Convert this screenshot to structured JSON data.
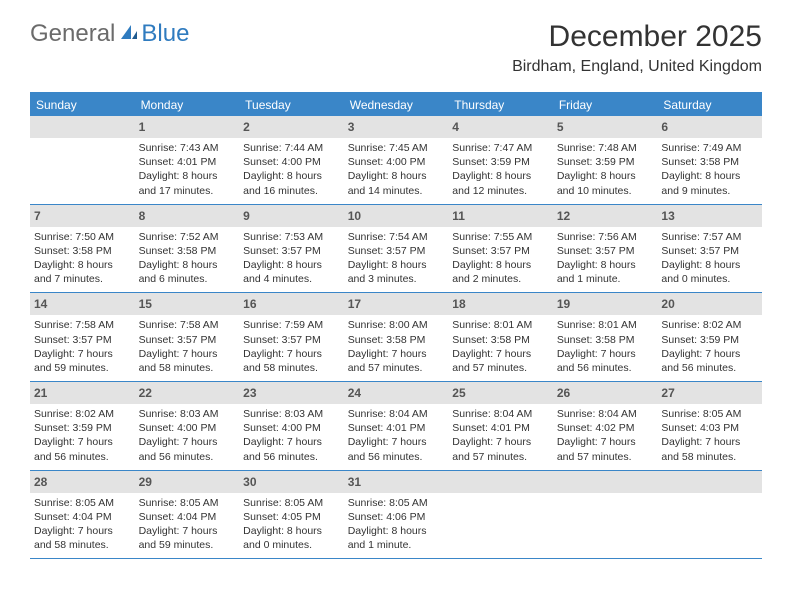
{
  "logo": {
    "general": "General",
    "blue": "Blue"
  },
  "title": "December 2025",
  "location": "Birdham, England, United Kingdom",
  "colors": {
    "header_bg": "#3a86c8",
    "header_text": "#ffffff",
    "daynum_bg": "#e3e3e3",
    "daynum_text": "#555555",
    "border": "#3a86c8",
    "body_text": "#333333",
    "logo_gray": "#6b6b6b",
    "logo_blue": "#2f7bbf"
  },
  "day_headers": [
    "Sunday",
    "Monday",
    "Tuesday",
    "Wednesday",
    "Thursday",
    "Friday",
    "Saturday"
  ],
  "weeks": [
    [
      {
        "n": "",
        "sunrise": "",
        "sunset": "",
        "daylight": ""
      },
      {
        "n": "1",
        "sunrise": "Sunrise: 7:43 AM",
        "sunset": "Sunset: 4:01 PM",
        "daylight": "Daylight: 8 hours and 17 minutes."
      },
      {
        "n": "2",
        "sunrise": "Sunrise: 7:44 AM",
        "sunset": "Sunset: 4:00 PM",
        "daylight": "Daylight: 8 hours and 16 minutes."
      },
      {
        "n": "3",
        "sunrise": "Sunrise: 7:45 AM",
        "sunset": "Sunset: 4:00 PM",
        "daylight": "Daylight: 8 hours and 14 minutes."
      },
      {
        "n": "4",
        "sunrise": "Sunrise: 7:47 AM",
        "sunset": "Sunset: 3:59 PM",
        "daylight": "Daylight: 8 hours and 12 minutes."
      },
      {
        "n": "5",
        "sunrise": "Sunrise: 7:48 AM",
        "sunset": "Sunset: 3:59 PM",
        "daylight": "Daylight: 8 hours and 10 minutes."
      },
      {
        "n": "6",
        "sunrise": "Sunrise: 7:49 AM",
        "sunset": "Sunset: 3:58 PM",
        "daylight": "Daylight: 8 hours and 9 minutes."
      }
    ],
    [
      {
        "n": "7",
        "sunrise": "Sunrise: 7:50 AM",
        "sunset": "Sunset: 3:58 PM",
        "daylight": "Daylight: 8 hours and 7 minutes."
      },
      {
        "n": "8",
        "sunrise": "Sunrise: 7:52 AM",
        "sunset": "Sunset: 3:58 PM",
        "daylight": "Daylight: 8 hours and 6 minutes."
      },
      {
        "n": "9",
        "sunrise": "Sunrise: 7:53 AM",
        "sunset": "Sunset: 3:57 PM",
        "daylight": "Daylight: 8 hours and 4 minutes."
      },
      {
        "n": "10",
        "sunrise": "Sunrise: 7:54 AM",
        "sunset": "Sunset: 3:57 PM",
        "daylight": "Daylight: 8 hours and 3 minutes."
      },
      {
        "n": "11",
        "sunrise": "Sunrise: 7:55 AM",
        "sunset": "Sunset: 3:57 PM",
        "daylight": "Daylight: 8 hours and 2 minutes."
      },
      {
        "n": "12",
        "sunrise": "Sunrise: 7:56 AM",
        "sunset": "Sunset: 3:57 PM",
        "daylight": "Daylight: 8 hours and 1 minute."
      },
      {
        "n": "13",
        "sunrise": "Sunrise: 7:57 AM",
        "sunset": "Sunset: 3:57 PM",
        "daylight": "Daylight: 8 hours and 0 minutes."
      }
    ],
    [
      {
        "n": "14",
        "sunrise": "Sunrise: 7:58 AM",
        "sunset": "Sunset: 3:57 PM",
        "daylight": "Daylight: 7 hours and 59 minutes."
      },
      {
        "n": "15",
        "sunrise": "Sunrise: 7:58 AM",
        "sunset": "Sunset: 3:57 PM",
        "daylight": "Daylight: 7 hours and 58 minutes."
      },
      {
        "n": "16",
        "sunrise": "Sunrise: 7:59 AM",
        "sunset": "Sunset: 3:57 PM",
        "daylight": "Daylight: 7 hours and 58 minutes."
      },
      {
        "n": "17",
        "sunrise": "Sunrise: 8:00 AM",
        "sunset": "Sunset: 3:58 PM",
        "daylight": "Daylight: 7 hours and 57 minutes."
      },
      {
        "n": "18",
        "sunrise": "Sunrise: 8:01 AM",
        "sunset": "Sunset: 3:58 PM",
        "daylight": "Daylight: 7 hours and 57 minutes."
      },
      {
        "n": "19",
        "sunrise": "Sunrise: 8:01 AM",
        "sunset": "Sunset: 3:58 PM",
        "daylight": "Daylight: 7 hours and 56 minutes."
      },
      {
        "n": "20",
        "sunrise": "Sunrise: 8:02 AM",
        "sunset": "Sunset: 3:59 PM",
        "daylight": "Daylight: 7 hours and 56 minutes."
      }
    ],
    [
      {
        "n": "21",
        "sunrise": "Sunrise: 8:02 AM",
        "sunset": "Sunset: 3:59 PM",
        "daylight": "Daylight: 7 hours and 56 minutes."
      },
      {
        "n": "22",
        "sunrise": "Sunrise: 8:03 AM",
        "sunset": "Sunset: 4:00 PM",
        "daylight": "Daylight: 7 hours and 56 minutes."
      },
      {
        "n": "23",
        "sunrise": "Sunrise: 8:03 AM",
        "sunset": "Sunset: 4:00 PM",
        "daylight": "Daylight: 7 hours and 56 minutes."
      },
      {
        "n": "24",
        "sunrise": "Sunrise: 8:04 AM",
        "sunset": "Sunset: 4:01 PM",
        "daylight": "Daylight: 7 hours and 56 minutes."
      },
      {
        "n": "25",
        "sunrise": "Sunrise: 8:04 AM",
        "sunset": "Sunset: 4:01 PM",
        "daylight": "Daylight: 7 hours and 57 minutes."
      },
      {
        "n": "26",
        "sunrise": "Sunrise: 8:04 AM",
        "sunset": "Sunset: 4:02 PM",
        "daylight": "Daylight: 7 hours and 57 minutes."
      },
      {
        "n": "27",
        "sunrise": "Sunrise: 8:05 AM",
        "sunset": "Sunset: 4:03 PM",
        "daylight": "Daylight: 7 hours and 58 minutes."
      }
    ],
    [
      {
        "n": "28",
        "sunrise": "Sunrise: 8:05 AM",
        "sunset": "Sunset: 4:04 PM",
        "daylight": "Daylight: 7 hours and 58 minutes."
      },
      {
        "n": "29",
        "sunrise": "Sunrise: 8:05 AM",
        "sunset": "Sunset: 4:04 PM",
        "daylight": "Daylight: 7 hours and 59 minutes."
      },
      {
        "n": "30",
        "sunrise": "Sunrise: 8:05 AM",
        "sunset": "Sunset: 4:05 PM",
        "daylight": "Daylight: 8 hours and 0 minutes."
      },
      {
        "n": "31",
        "sunrise": "Sunrise: 8:05 AM",
        "sunset": "Sunset: 4:06 PM",
        "daylight": "Daylight: 8 hours and 1 minute."
      },
      {
        "n": "",
        "sunrise": "",
        "sunset": "",
        "daylight": ""
      },
      {
        "n": "",
        "sunrise": "",
        "sunset": "",
        "daylight": ""
      },
      {
        "n": "",
        "sunrise": "",
        "sunset": "",
        "daylight": ""
      }
    ]
  ]
}
